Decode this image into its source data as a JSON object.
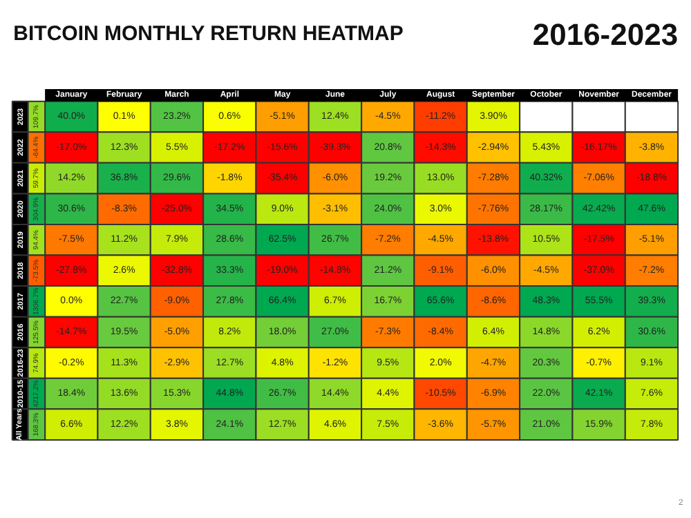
{
  "chart_data": {
    "type": "heatmap",
    "title": "BITCOIN MONTHLY RETURN HEATMAP",
    "subtitle": "2016-2023",
    "categories": [
      "January",
      "February",
      "March",
      "April",
      "May",
      "June",
      "July",
      "August",
      "September",
      "October",
      "November",
      "December"
    ],
    "y_categories": [
      "2023",
      "2022",
      "2021",
      "2020",
      "2019",
      "2018",
      "2017",
      "2016",
      "2016-23",
      "2010-15",
      "All Years"
    ],
    "y2_categories": [
      "109.7%",
      "-64.4%",
      "59.7%",
      "304.9%",
      "94.4%",
      "-73.5%",
      "1306.7%",
      "125.5%",
      "74.9%",
      "4217.2%",
      "168.3%"
    ],
    "cells": [
      [
        40.0,
        0.1,
        23.2,
        0.6,
        -5.1,
        12.4,
        -4.5,
        -11.2,
        3.9,
        null,
        null,
        null
      ],
      [
        -17.0,
        12.3,
        5.5,
        -17.2,
        -15.6,
        -39.3,
        20.8,
        -14.3,
        -2.94,
        5.43,
        -16.17,
        -3.8
      ],
      [
        14.2,
        36.8,
        29.6,
        -1.8,
        -35.4,
        -6.0,
        19.2,
        13.0,
        -7.28,
        40.32,
        -7.06,
        -18.8
      ],
      [
        30.6,
        -8.3,
        -25.0,
        34.5,
        9.0,
        -3.1,
        24.0,
        3.0,
        -7.76,
        28.17,
        42.42,
        47.6
      ],
      [
        -7.5,
        11.2,
        7.9,
        28.6,
        62.5,
        26.7,
        -7.2,
        -4.5,
        -13.8,
        10.5,
        -17.5,
        -5.1
      ],
      [
        -27.8,
        2.6,
        -32.8,
        33.3,
        -19.0,
        -14.8,
        21.2,
        -9.1,
        -6.0,
        -4.5,
        -37.0,
        -7.2
      ],
      [
        0.0,
        22.7,
        -9.0,
        27.8,
        66.4,
        6.7,
        16.7,
        65.6,
        -8.6,
        48.3,
        55.5,
        39.3
      ],
      [
        -14.7,
        19.5,
        -5.0,
        8.2,
        18.0,
        27.0,
        -7.3,
        -8.4,
        6.4,
        14.8,
        6.2,
        30.6
      ],
      [
        -0.2,
        11.3,
        -2.9,
        12.7,
        4.8,
        -1.2,
        9.5,
        2.0,
        -4.7,
        20.3,
        -0.7,
        9.1
      ],
      [
        18.4,
        13.6,
        15.3,
        44.8,
        26.7,
        14.4,
        4.4,
        -10.5,
        -6.9,
        22.0,
        42.1,
        7.6
      ],
      [
        6.6,
        12.2,
        3.8,
        24.1,
        12.7,
        4.6,
        7.5,
        -3.6,
        -5.7,
        21.0,
        15.9,
        7.8
      ]
    ],
    "cell_labels": [
      [
        "40.0%",
        "0.1%",
        "23.2%",
        "0.6%",
        "-5.1%",
        "12.4%",
        "-4.5%",
        "-11.2%",
        "3.90%",
        null,
        null,
        null
      ],
      [
        "-17.0%",
        "12.3%",
        "5.5%",
        "-17.2%",
        "-15.6%",
        "-39.3%",
        "20.8%",
        "-14.3%",
        "-2.94%",
        "5.43%",
        "-16.17%",
        "-3.8%"
      ],
      [
        "14.2%",
        "36.8%",
        "29.6%",
        "-1.8%",
        "-35.4%",
        "-6.0%",
        "19.2%",
        "13.0%",
        "-7.28%",
        "40.32%",
        "-7.06%",
        "-18.8%"
      ],
      [
        "30.6%",
        "-8.3%",
        "-25.0%",
        "34.5%",
        "9.0%",
        "-3.1%",
        "24.0%",
        "3.0%",
        "-7.76%",
        "28.17%",
        "42.42%",
        "47.6%"
      ],
      [
        "-7.5%",
        "11.2%",
        "7.9%",
        "28.6%",
        "62.5%",
        "26.7%",
        "-7.2%",
        "-4.5%",
        "-13.8%",
        "10.5%",
        "-17.5%",
        "-5.1%"
      ],
      [
        "-27.8%",
        "2.6%",
        "-32.8%",
        "33.3%",
        "-19.0%",
        "-14.8%",
        "21.2%",
        "-9.1%",
        "-6.0%",
        "-4.5%",
        "-37.0%",
        "-7.2%"
      ],
      [
        "0.0%",
        "22.7%",
        "-9.0%",
        "27.8%",
        "66.4%",
        "6.7%",
        "16.7%",
        "65.6%",
        "-8.6%",
        "48.3%",
        "55.5%",
        "39.3%"
      ],
      [
        "-14.7%",
        "19.5%",
        "-5.0%",
        "8.2%",
        "18.0%",
        "27.0%",
        "-7.3%",
        "-8.4%",
        "6.4%",
        "14.8%",
        "6.2%",
        "30.6%"
      ],
      [
        "-0.2%",
        "11.3%",
        "-2.9%",
        "12.7%",
        "4.8%",
        "-1.2%",
        "9.5%",
        "2.0%",
        "-4.7%",
        "20.3%",
        "-0.7%",
        "9.1%"
      ],
      [
        "18.4%",
        "13.6%",
        "15.3%",
        "44.8%",
        "26.7%",
        "14.4%",
        "4.4%",
        "-10.5%",
        "-6.9%",
        "22.0%",
        "42.1%",
        "7.6%"
      ],
      [
        "6.6%",
        "12.2%",
        "3.8%",
        "24.1%",
        "12.7%",
        "4.6%",
        "7.5%",
        "-3.6%",
        "-5.7%",
        "21.0%",
        "15.9%",
        "7.8%"
      ]
    ],
    "annotations": [
      "2"
    ]
  }
}
